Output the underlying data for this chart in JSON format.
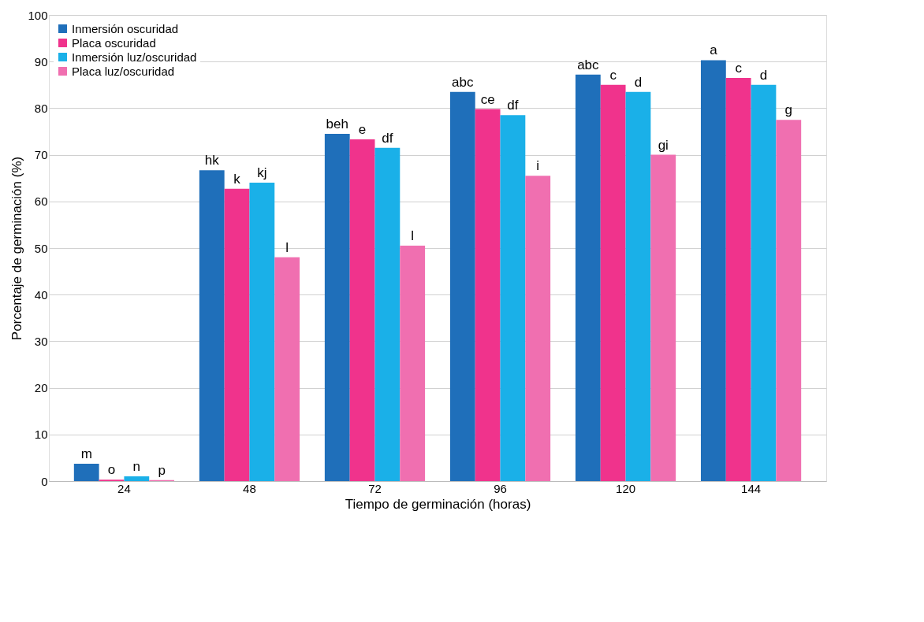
{
  "chart_data": {
    "type": "bar",
    "xlabel": "Tiempo de germinación (horas)",
    "ylabel": "Porcentaje de germinación (%)",
    "categories": [
      "24",
      "48",
      "72",
      "96",
      "120",
      "144"
    ],
    "series": [
      {
        "name": "Inmersión oscuridad",
        "color": "#1f6fba",
        "values": [
          3.7,
          66.7,
          74.5,
          83.5,
          87.2,
          90.3
        ],
        "value_labels": [
          "m",
          "hk",
          "beh",
          "abc",
          "abc",
          "a"
        ]
      },
      {
        "name": "Placa oscuridad",
        "color": "#f0338c",
        "values": [
          0.3,
          62.7,
          73.3,
          79.8,
          85.0,
          86.5
        ],
        "value_labels": [
          "o",
          "k",
          "e",
          "ce",
          "c",
          "c"
        ]
      },
      {
        "name": "Inmersión luz/oscuridad",
        "color": "#1ab0e8",
        "values": [
          1.0,
          64.0,
          71.5,
          78.5,
          83.5,
          85.0
        ],
        "value_labels": [
          "n",
          "kj",
          "df",
          "df",
          "d",
          "d"
        ]
      },
      {
        "name": "Placa luz/oscuridad",
        "color": "#f06fb0",
        "values": [
          0.2,
          48.0,
          50.5,
          65.5,
          70.0,
          77.5
        ],
        "value_labels": [
          "p",
          "l",
          "l",
          "i",
          "gi",
          "g"
        ]
      }
    ],
    "ylim": [
      0,
      100
    ],
    "yticks": [
      0,
      10,
      20,
      30,
      40,
      50,
      60,
      70,
      80,
      90,
      100
    ],
    "grid": "y",
    "legend": "top left"
  }
}
